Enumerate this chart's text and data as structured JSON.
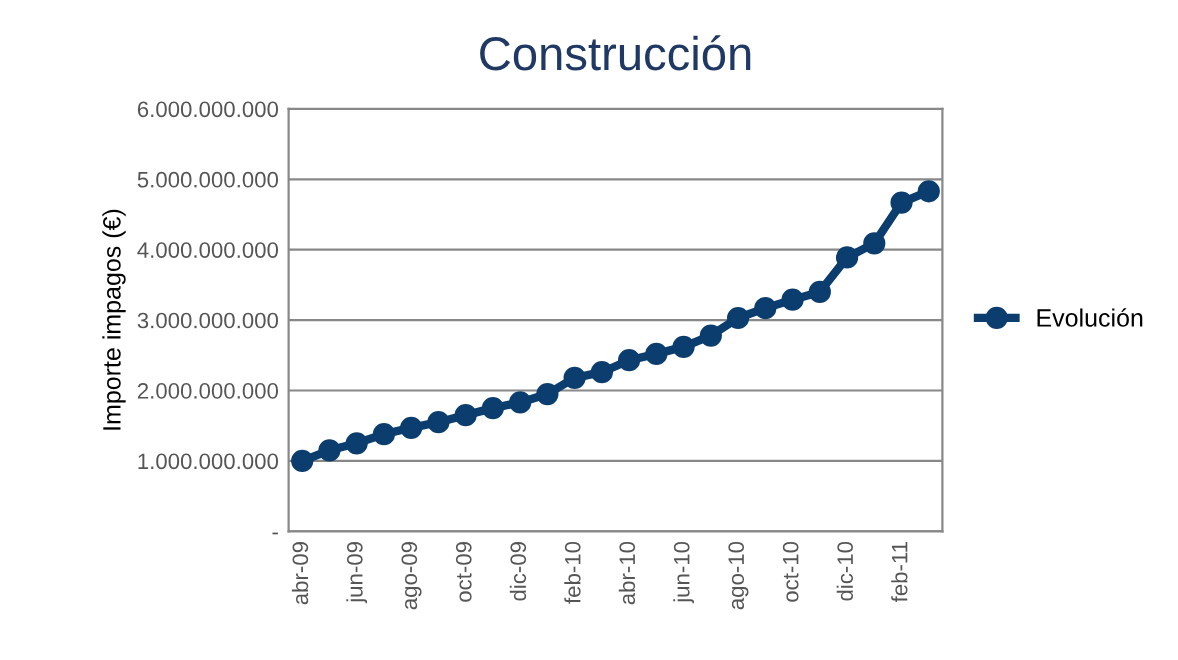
{
  "chart_data": {
    "type": "line",
    "title": "Construcción",
    "ylabel": "Importe impagos (€)",
    "categories": [
      "abr-09",
      null,
      "jun-09",
      null,
      "ago-09",
      null,
      "oct-09",
      null,
      "dic-09",
      null,
      "feb-10",
      null,
      "abr-10",
      null,
      "jun-10",
      null,
      "ago-10",
      null,
      "oct-10",
      null,
      "dic-10",
      null,
      "feb-11",
      null
    ],
    "series": [
      {
        "name": "Evolución",
        "color": "#0b3d6e",
        "values": [
          1000000000,
          1150000000,
          1250000000,
          1380000000,
          1470000000,
          1550000000,
          1650000000,
          1750000000,
          1830000000,
          1950000000,
          2180000000,
          2260000000,
          2430000000,
          2520000000,
          2620000000,
          2780000000,
          3030000000,
          3170000000,
          3290000000,
          3400000000,
          3890000000,
          4090000000,
          4670000000,
          4830000000
        ]
      }
    ],
    "ylim": [
      0,
      6000000000
    ],
    "yticks": [
      {
        "value": 0,
        "label": "-"
      },
      {
        "value": 1000000000,
        "label": "1.000.000.000"
      },
      {
        "value": 2000000000,
        "label": "2.000.000.000"
      },
      {
        "value": 3000000000,
        "label": "3.000.000.000"
      },
      {
        "value": 4000000000,
        "label": "4.000.000.000"
      },
      {
        "value": 5000000000,
        "label": "5.000.000.000"
      },
      {
        "value": 6000000000,
        "label": "6.000.000.000"
      }
    ],
    "grid": "y",
    "legend": "right",
    "marker": "circle",
    "line_style": "solid"
  }
}
